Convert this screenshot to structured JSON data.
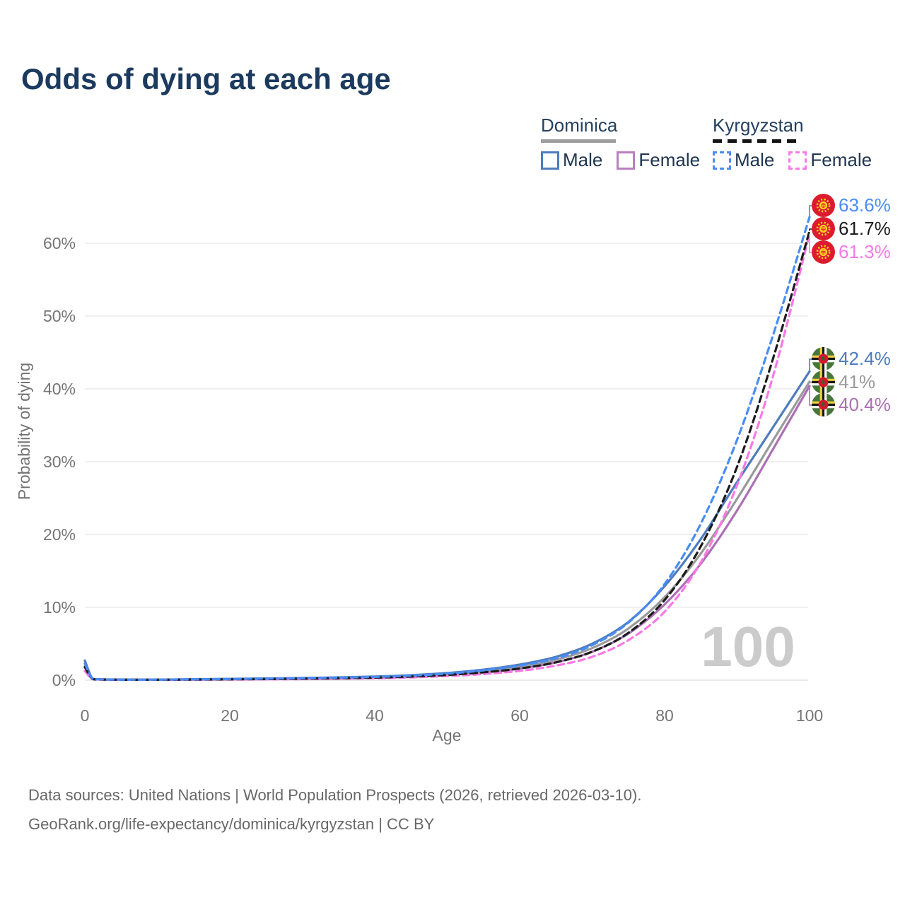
{
  "title": "Odds of dying at each age",
  "legend": {
    "groups": [
      {
        "country": "Dominica",
        "line_style": "solid",
        "items": [
          {
            "label": "Male",
            "color": "#4e7cbe"
          },
          {
            "label": "Female",
            "color": "#ad6fb5"
          }
        ]
      },
      {
        "country": "Kyrgyzstan",
        "line_style": "dashed",
        "items": [
          {
            "label": "Male",
            "color": "#4a8cf5"
          },
          {
            "label": "Female",
            "color": "#fa78e6"
          }
        ]
      }
    ]
  },
  "chart_data": {
    "type": "line",
    "title": "Odds of dying at each age",
    "xlabel": "Age",
    "ylabel": "Probability of dying",
    "xlim": [
      0,
      100
    ],
    "ylim": [
      0,
      66
    ],
    "x_ticks": [
      0,
      20,
      40,
      60,
      80,
      100
    ],
    "y_ticks": [
      {
        "label": "0%",
        "value": 0
      },
      {
        "label": "10%",
        "value": 10
      },
      {
        "label": "20%",
        "value": 20
      },
      {
        "label": "30%",
        "value": 30
      },
      {
        "label": "40%",
        "value": 40
      },
      {
        "label": "50%",
        "value": 50
      },
      {
        "label": "60%",
        "value": 60
      }
    ],
    "grid": "horizontal",
    "age_indicator": "100",
    "ages": [
      0,
      1,
      2,
      4,
      10,
      20,
      30,
      40,
      45,
      50,
      55,
      60,
      65,
      70,
      75,
      80,
      85,
      90,
      95,
      100
    ],
    "series": [
      {
        "name": "Dominica Female",
        "country": "Dominica",
        "sex": "Female",
        "color": "#ad6fb5",
        "dash": false,
        "values": [
          1.9,
          0.2,
          0.11,
          0.08,
          0.06,
          0.11,
          0.18,
          0.34,
          0.49,
          0.71,
          1.07,
          1.6,
          2.45,
          3.9,
          6.4,
          10.4,
          16.0,
          23.3,
          31.8,
          40.4
        ]
      },
      {
        "name": "Dominica Both sexes",
        "country": "Dominica",
        "sex": "Both sexes",
        "color": "#9a9a9a",
        "dash": false,
        "values": [
          2.3,
          0.24,
          0.12,
          0.09,
          0.07,
          0.14,
          0.24,
          0.42,
          0.58,
          0.84,
          1.25,
          1.85,
          2.8,
          4.4,
          7.1,
          11.4,
          17.4,
          24.9,
          33.0,
          41.0
        ]
      },
      {
        "name": "Dominica Male",
        "country": "Dominica",
        "sex": "Male",
        "color": "#4e7cbe",
        "dash": false,
        "values": [
          2.7,
          0.28,
          0.14,
          0.1,
          0.08,
          0.18,
          0.3,
          0.5,
          0.68,
          0.98,
          1.45,
          2.15,
          3.2,
          5.0,
          8.0,
          12.9,
          19.4,
          27.2,
          34.8,
          42.4
        ]
      },
      {
        "name": "Kyrgyzstan Female",
        "country": "Kyrgyzstan",
        "sex": "Female",
        "color": "#fa78e6",
        "dash": true,
        "values": [
          1.25,
          0.16,
          0.09,
          0.06,
          0.05,
          0.09,
          0.14,
          0.26,
          0.38,
          0.56,
          0.84,
          1.27,
          2.0,
          3.2,
          5.5,
          9.4,
          16.2,
          26.8,
          41.9,
          61.3
        ]
      },
      {
        "name": "Kyrgyzstan Both sexes",
        "country": "Kyrgyzstan",
        "sex": "Both sexes",
        "color": "#1c1c1c",
        "dash": true,
        "values": [
          1.8,
          0.2,
          0.1,
          0.07,
          0.06,
          0.12,
          0.2,
          0.35,
          0.5,
          0.72,
          1.08,
          1.6,
          2.45,
          3.9,
          6.5,
          11.0,
          18.4,
          29.3,
          44.3,
          61.7
        ]
      },
      {
        "name": "Kyrgyzstan Male",
        "country": "Kyrgyzstan",
        "sex": "Male",
        "color": "#4a8cf5",
        "dash": true,
        "values": [
          2.3,
          0.24,
          0.12,
          0.08,
          0.07,
          0.16,
          0.27,
          0.45,
          0.62,
          0.9,
          1.35,
          2.0,
          3.0,
          4.8,
          7.9,
          13.2,
          21.5,
          33.0,
          47.5,
          63.6
        ]
      }
    ],
    "end_labels": [
      {
        "country": "Kyrgyzstan",
        "sex": "Male",
        "label": "63.6%",
        "value": 63.6,
        "color": "#4a8cf5",
        "flag": "kyrgyzstan"
      },
      {
        "country": "Kyrgyzstan",
        "sex": "Both sexes",
        "label": "61.7%",
        "value": 61.7,
        "color": "#1c1c1c",
        "flag": "kyrgyzstan"
      },
      {
        "country": "Kyrgyzstan",
        "sex": "Female",
        "label": "61.3%",
        "value": 61.3,
        "color": "#fa78e6",
        "flag": "kyrgyzstan"
      },
      {
        "country": "Dominica",
        "sex": "Male",
        "label": "42.4%",
        "value": 42.4,
        "color": "#4e7cbe",
        "flag": "dominica"
      },
      {
        "country": "Dominica",
        "sex": "Both sexes",
        "label": "41%",
        "value": 41.0,
        "color": "#9a9a9a",
        "flag": "dominica"
      },
      {
        "country": "Dominica",
        "sex": "Female",
        "label": "40.4%",
        "value": 40.4,
        "color": "#ad6fb5",
        "flag": "dominica"
      }
    ],
    "colors": {
      "title": "#1b3a5e",
      "axis_text": "#757575",
      "gridline": "#ececec",
      "watermark": "#cbcbcb",
      "kyrgyzstan_flag_red": "#dd1b2f",
      "kyrgyzstan_flag_yellow": "#ffd21e",
      "dominica_flag_green": "#47763a",
      "dominica_flag_red": "#d8152f"
    }
  },
  "footer": {
    "line1": "Data sources: United Nations | World Population Prospects (2026, retrieved 2026-03-10).",
    "line2": "GeoRank.org/life-expectancy/dominica/kyrgyzstan | CC BY"
  }
}
